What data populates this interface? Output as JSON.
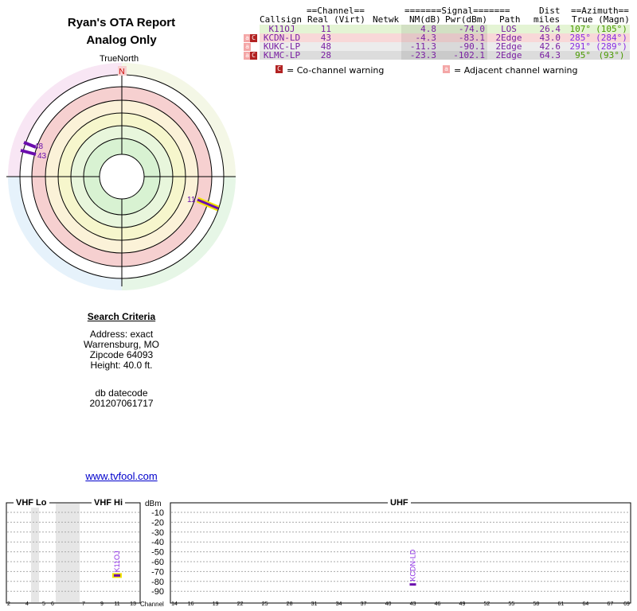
{
  "report": {
    "title_line1": "Ryan's OTA Report",
    "title_line2": "Analog Only"
  },
  "radar": {
    "true_north_label": "TrueNorth",
    "north_marker": "N",
    "markers": [
      {
        "channel": "48",
        "azimuth_deg": 291,
        "color": "#6a0dad"
      },
      {
        "channel": "43",
        "azimuth_deg": 285,
        "color": "#6a0dad"
      },
      {
        "channel": "11",
        "azimuth_deg": 107,
        "color": "#6a0dad",
        "highlight": "#f2e400"
      }
    ]
  },
  "criteria": {
    "heading": "Search Criteria",
    "address": "Address: exact",
    "city": "Warrensburg, MO",
    "zip": "Zipcode 64093",
    "height": "Height: 40.0 ft.",
    "db_label": "db datecode",
    "db_value": "201207061717"
  },
  "link": "www.tvfool.com",
  "table": {
    "group_channel": "==Channel==",
    "group_signal": "=======Signal=======",
    "group_dist": "Dist",
    "group_azimuth": "==Azimuth==",
    "col_callsign": "Callsign",
    "col_real_virt": "Real (Virt)",
    "col_netwk": "Netwk",
    "col_nm": "NM(dB)",
    "col_pwr": "Pwr(dBm)",
    "col_path": "Path",
    "col_miles": "miles",
    "col_true_magn": "True (Magn)",
    "rows": [
      {
        "callsign": "K11OJ",
        "real": "11",
        "nm": "4.8",
        "pwr": "-74.0",
        "path": "LOS",
        "miles": "26.4",
        "true": "107°",
        "magn": "(105°)",
        "warn_co": "",
        "warn_adj": "",
        "bg": "#e4f4d4",
        "az_color": "#4a9a00"
      },
      {
        "callsign": "KCDN-LD",
        "real": "43",
        "nm": "-4.3",
        "pwr": "-83.1",
        "path": "2Edge",
        "miles": "43.0",
        "true": "285°",
        "magn": "(284°)",
        "warn_co": "C",
        "warn_adj": "a",
        "bg": "#f8d8d8",
        "az_color": "#8a2be2"
      },
      {
        "callsign": "KUKC-LP",
        "real": "48",
        "nm": "-11.3",
        "pwr": "-90.1",
        "path": "2Edge",
        "miles": "42.6",
        "true": "291°",
        "magn": "(289°)",
        "warn_co": "",
        "warn_adj": "a",
        "bg": "#ececec",
        "az_color": "#8a2be2"
      },
      {
        "callsign": "KLMC-LP",
        "real": "28",
        "nm": "-23.3",
        "pwr": "-102.1",
        "path": "2Edge",
        "miles": "64.3",
        "true": "95°",
        "magn": "(93°)",
        "warn_co": "C",
        "warn_adj": "a",
        "bg": "#dcdcdc",
        "az_color": "#4a9a00"
      }
    ],
    "legend_co_icon": "C",
    "legend_co": "= Co-channel warning",
    "legend_adj_icon": "a",
    "legend_adj": "= Adjacent channel warning"
  },
  "spectrum": {
    "vhf_lo": "VHF Lo",
    "vhf_hi": "VHF Hi",
    "uhf": "UHF",
    "dbm_label": "dBm",
    "channel_label": "Channel",
    "dbm_ticks": [
      "-10",
      "-20",
      "-30",
      "-40",
      "-50",
      "-60",
      "-70",
      "-80",
      "-90"
    ],
    "vhf_lo_ticks": [
      "2",
      "4",
      "5",
      "6"
    ],
    "vhf_hi_ticks": [
      "7",
      "9",
      "11",
      "13"
    ],
    "uhf_ticks": [
      "14",
      "16",
      "19",
      "22",
      "25",
      "28",
      "31",
      "34",
      "37",
      "40",
      "43",
      "46",
      "49",
      "52",
      "55",
      "58",
      "61",
      "64",
      "67",
      "69"
    ],
    "stations": [
      {
        "label": "K11OJ",
        "channel": 11,
        "dbm": -74.0
      },
      {
        "label": "KCDN-LD",
        "channel": 43,
        "dbm": -83.1
      }
    ]
  }
}
